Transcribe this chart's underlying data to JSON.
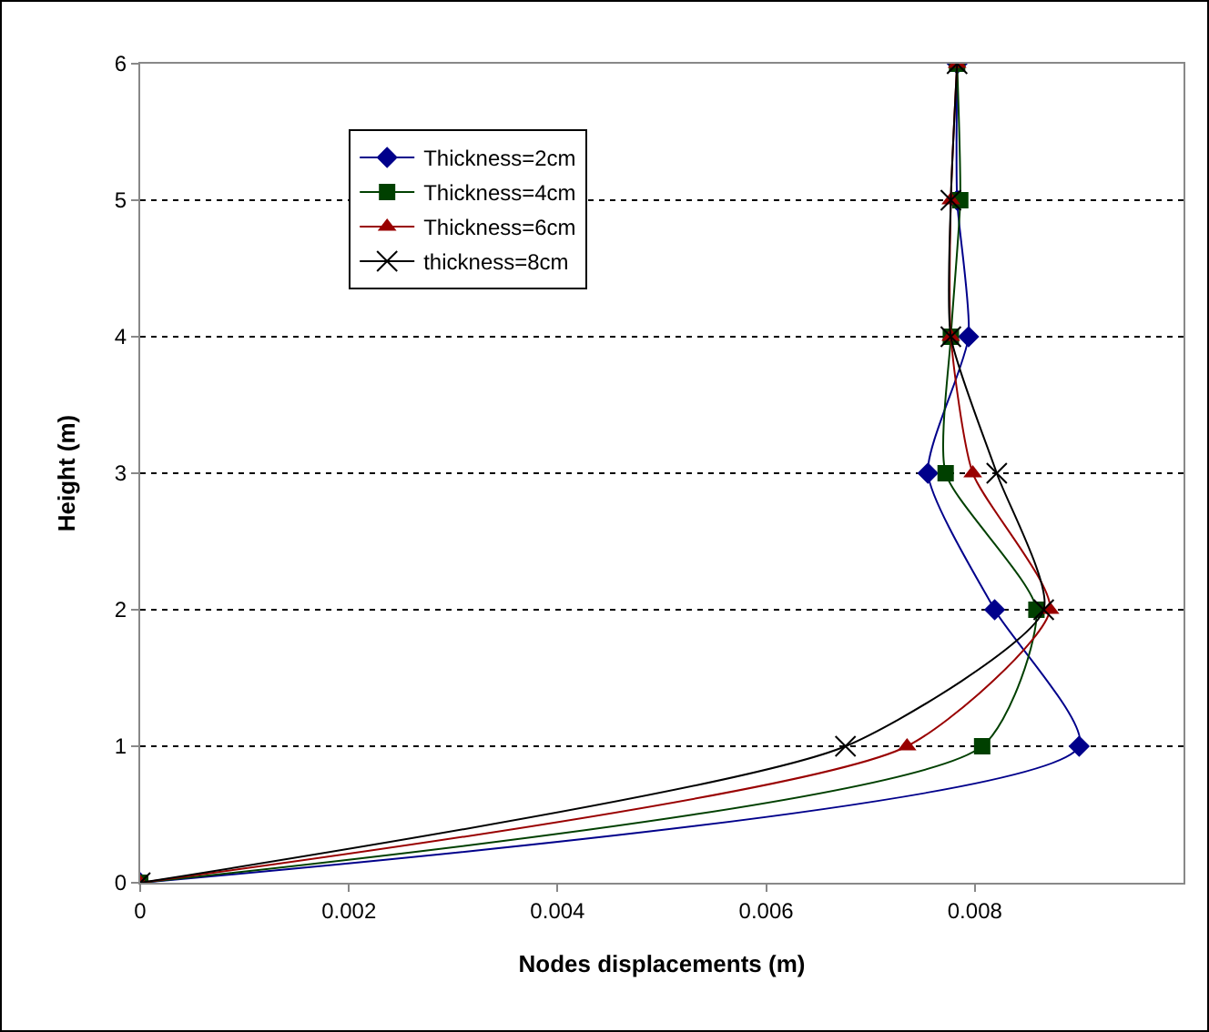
{
  "chart_data": {
    "type": "line",
    "xlabel": "Nodes displacements (m)",
    "ylabel": "Height (m)",
    "xlim": [
      0,
      0.01
    ],
    "ylim": [
      0,
      6
    ],
    "xticks": [
      0,
      0.002,
      0.004,
      0.006,
      0.008
    ],
    "yticks": [
      0,
      1,
      2,
      3,
      4,
      5,
      6
    ],
    "grid": "y",
    "legend": "top left",
    "line_style": "solid",
    "series": [
      {
        "name": "Thickness=2cm",
        "color": "#00008b",
        "marker": "diamond",
        "x": [
          0,
          0.009,
          0.00819,
          0.00755,
          0.00794,
          0.00783,
          0.00783
        ],
        "values": [
          0,
          1,
          2,
          3,
          4,
          5,
          6
        ]
      },
      {
        "name": "Thickness=4cm",
        "color": "#004000",
        "marker": "square",
        "x": [
          0,
          0.00807,
          0.00859,
          0.00772,
          0.00777,
          0.00786,
          0.00783
        ],
        "values": [
          0,
          1,
          2,
          3,
          4,
          5,
          6
        ]
      },
      {
        "name": "Thickness=6cm",
        "color": "#990000",
        "marker": "triangle",
        "x": [
          0,
          0.00735,
          0.00872,
          0.00798,
          0.00777,
          0.00777,
          0.00783
        ],
        "values": [
          0,
          1,
          2,
          3,
          4,
          5,
          6
        ]
      },
      {
        "name": "thickness=8cm",
        "color": "#000000",
        "marker": "cross",
        "x": [
          0,
          0.00676,
          0.00866,
          0.00821,
          0.00777,
          0.00777,
          0.00783
        ],
        "values": [
          0,
          1,
          2,
          3,
          4,
          5,
          6
        ]
      }
    ]
  }
}
